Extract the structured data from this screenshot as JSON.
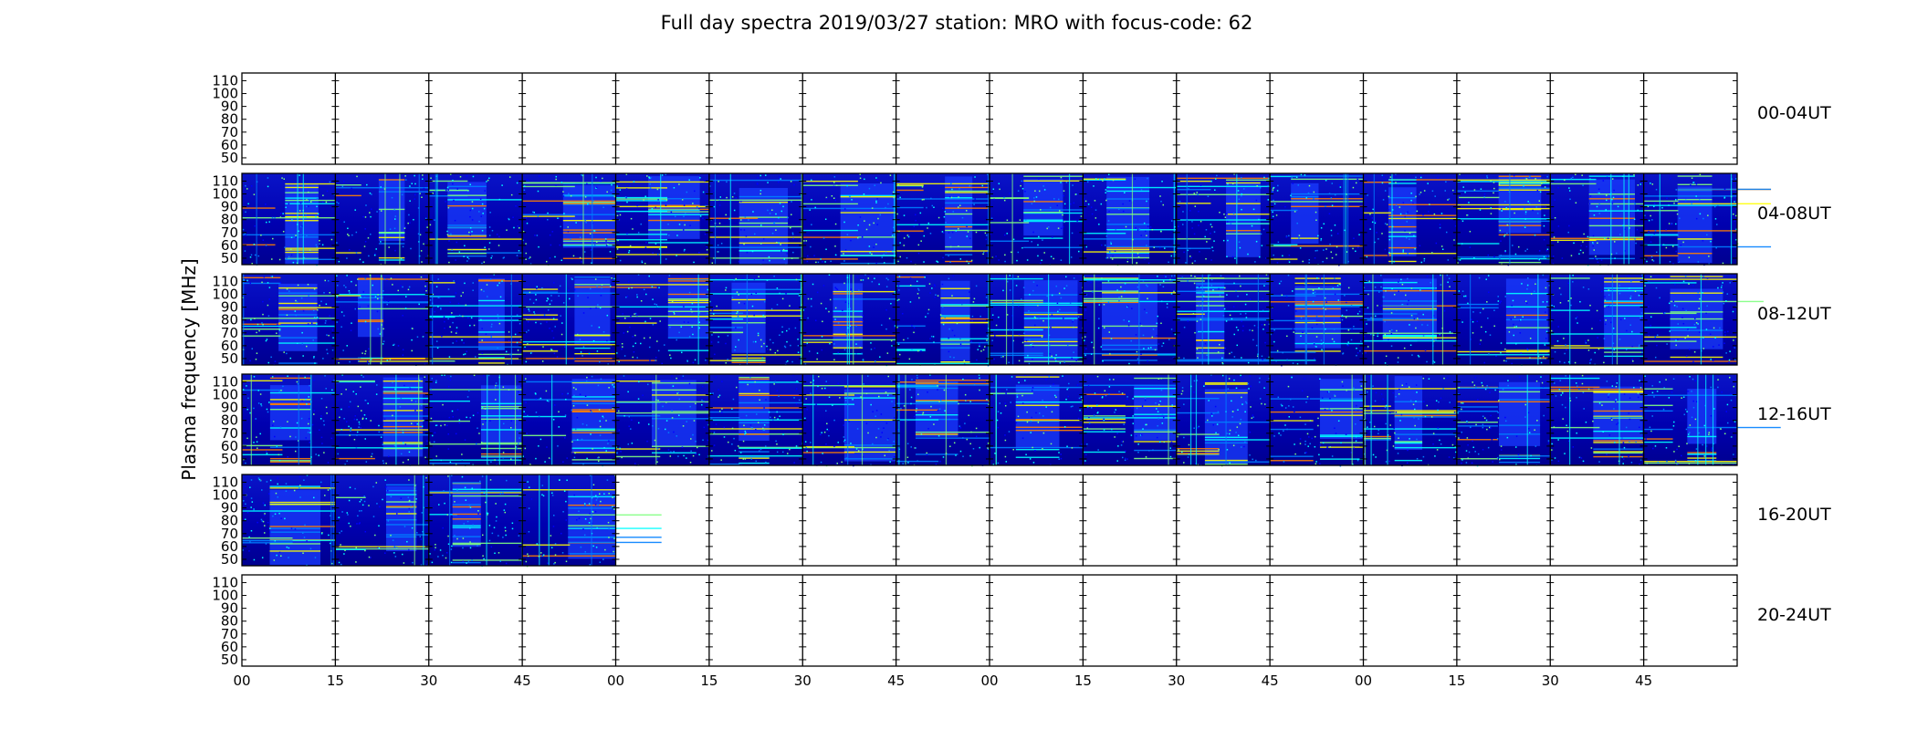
{
  "chart_data": {
    "type": "heatmap",
    "title": "Full day spectra 2019/03/27 station: MRO with focus-code: 62",
    "ylabel": "Plasma frequency [MHz]",
    "xlabel": "",
    "ylim": [
      45,
      116
    ],
    "y_ticks": [
      "110",
      "100",
      "90",
      "80",
      "70",
      "60",
      "50"
    ],
    "x_ticks": [
      "00",
      "15",
      "30",
      "45",
      "00",
      "15",
      "30",
      "45",
      "00",
      "15",
      "30",
      "45",
      "00",
      "15",
      "30",
      "45"
    ],
    "minutes_per_segment": 15,
    "segments_per_row": 16,
    "colormap": [
      "#00007f",
      "#0000ff",
      "#007fff",
      "#00ffff",
      "#7fff7f",
      "#ffff00",
      "#ff7f00",
      "#ff0000"
    ],
    "rows": [
      {
        "label": "00-04UT",
        "segments_with_data": 0
      },
      {
        "label": "04-08UT",
        "segments_with_data": 16
      },
      {
        "label": "08-12UT",
        "segments_with_data": 16
      },
      {
        "label": "12-16UT",
        "segments_with_data": 16
      },
      {
        "label": "16-20UT",
        "segments_with_data": 4
      },
      {
        "label": "20-24UT",
        "segments_with_data": 0
      }
    ]
  }
}
